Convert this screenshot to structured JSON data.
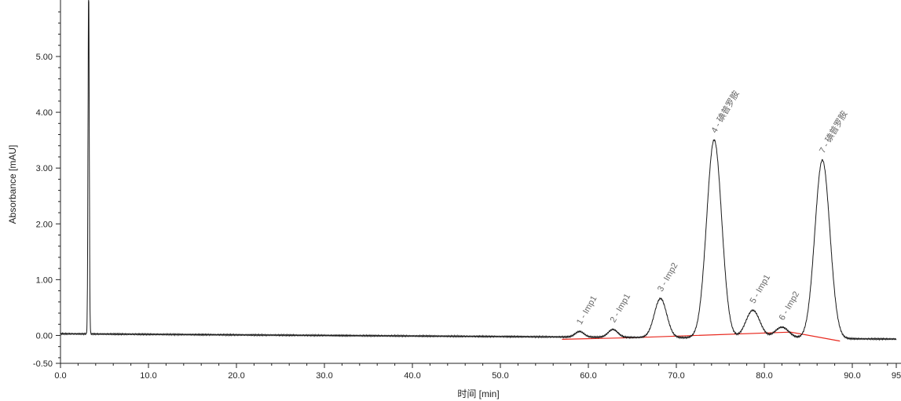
{
  "chart_data": {
    "type": "line",
    "title": "",
    "xlabel": "时间 [min]",
    "ylabel": "Absorbance [mAU]",
    "xlim": [
      0,
      95
    ],
    "ylim": [
      -0.5,
      5.9
    ],
    "x_ticks": [
      0,
      10,
      20,
      30,
      40,
      50,
      60,
      70,
      80,
      90,
      95
    ],
    "x_tick_labels": [
      "0.0",
      "10.0",
      "20.0",
      "30.0",
      "40.0",
      "50.0",
      "60.0",
      "70.0",
      "80.0",
      "90.0",
      "95"
    ],
    "y_ticks": [
      -0.5,
      0,
      1,
      2,
      3,
      4,
      5
    ],
    "y_tick_labels": [
      "-0.50",
      "0.00",
      "1.00",
      "2.00",
      "3.00",
      "4.00",
      "5.00"
    ],
    "grid": false,
    "trace_color": "#1a1a1a",
    "baseline_color": "#e8281e",
    "baseline": {
      "x": [
        57.0,
        65.0,
        83.0,
        88.6
      ],
      "y": [
        -0.07,
        -0.04,
        0.06,
        -0.1
      ]
    },
    "solvent_peak": {
      "x": 3.2,
      "height": 6.2,
      "width": 0.07
    },
    "peaks": [
      {
        "label": "1 - Imp1",
        "rt": 59.0,
        "height": 0.1,
        "width": 0.5
      },
      {
        "label": "2 - Imp1",
        "rt": 62.8,
        "height": 0.14,
        "width": 0.55
      },
      {
        "label": "3 - Imp2",
        "rt": 68.2,
        "height": 0.7,
        "width": 0.7
      },
      {
        "label": "4 - 碘普罗胺",
        "rt": 74.3,
        "height": 3.55,
        "width": 0.85
      },
      {
        "label": "5 - Imp1",
        "rt": 78.7,
        "height": 0.5,
        "width": 0.8
      },
      {
        "label": "6 - Imp2",
        "rt": 82.0,
        "height": 0.2,
        "width": 0.8
      },
      {
        "label": "7 - 碘普罗胺",
        "rt": 86.6,
        "height": 3.2,
        "width": 0.85
      }
    ]
  }
}
